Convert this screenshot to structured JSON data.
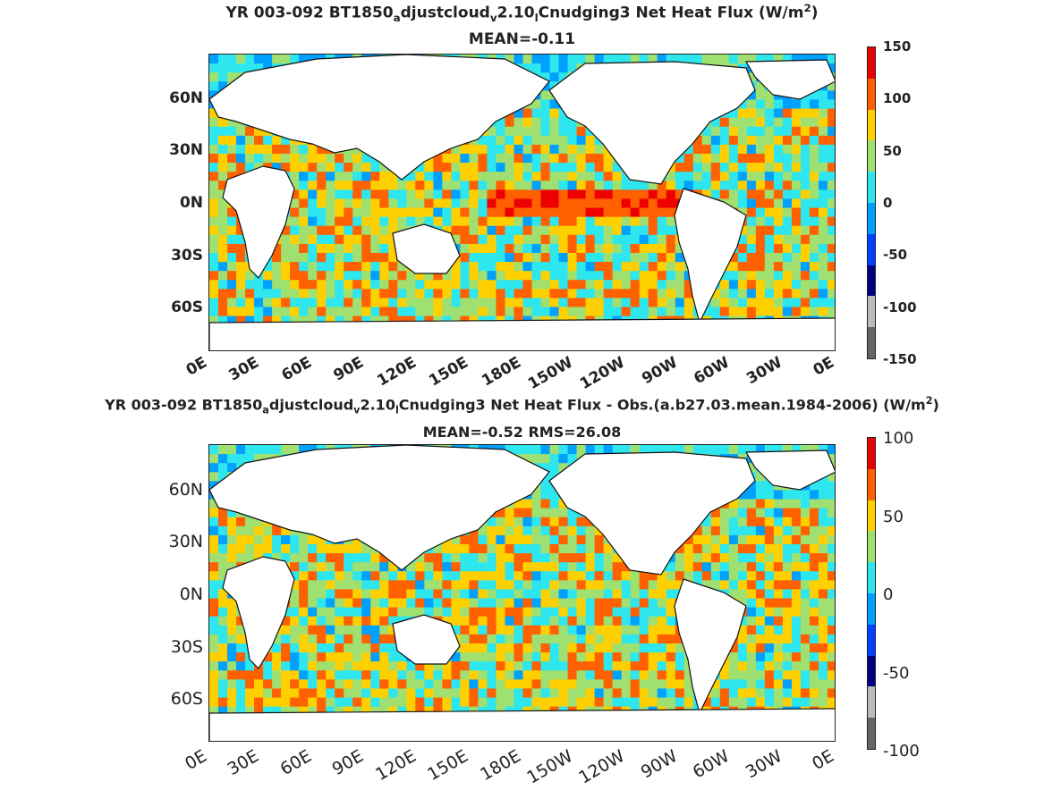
{
  "colors": {
    "deep_neg": "#000080",
    "neg": "#0040ff",
    "mid_neg": "#00a0ff",
    "zero": "#2ee6ee",
    "pos": "#a0e070",
    "mid_pos": "#ffd000",
    "high_pos": "#ff6000",
    "max_pos": "#ee0000",
    "land": "#ffffff",
    "ice": "#666666"
  },
  "chart_data": [
    {
      "type": "heatmap",
      "title_main": "YR 003-092 BT1850",
      "title_sub1": "a",
      "title_mid1": "djustcloud",
      "title_sub2": "v",
      "title_mid2": "2.10",
      "title_sub3": "l",
      "title_end": "Cnudging3  Net Heat Flux (W/m",
      "title_sup": "2",
      "title_close": ")",
      "subtitle": "MEAN=-0.11",
      "y_ticks": [
        "60N",
        "30N",
        "0N",
        "30S",
        "60S"
      ],
      "x_ticks": [
        "0E",
        "30E",
        "60E",
        "90E",
        "120E",
        "150E",
        "180E",
        "150W",
        "120W",
        "90W",
        "60W",
        "30W",
        "0E"
      ],
      "colorbar_ticks": [
        "150",
        "100",
        "50",
        "0",
        "-50",
        "-100",
        "-150"
      ],
      "clim": [
        -150,
        150
      ]
    },
    {
      "type": "heatmap",
      "title_main": "YR 003-092 BT1850",
      "title_sub1": "a",
      "title_mid1": "djustcloud",
      "title_sub2": "v",
      "title_mid2": "2.10",
      "title_sub3": "l",
      "title_end": "Cnudging3  Net Heat Flux - Obs.(a.b27.03.mean.1984-2006) (W/m",
      "title_sup": "2",
      "title_close": ")",
      "subtitle": "MEAN=-0.52 RMS=26.08",
      "y_ticks": [
        "60N",
        "30N",
        "0N",
        "30S",
        "60S"
      ],
      "x_ticks": [
        "0E",
        "30E",
        "60E",
        "90E",
        "120E",
        "150E",
        "180E",
        "150W",
        "120W",
        "90W",
        "60W",
        "30W",
        "0E"
      ],
      "colorbar_ticks": [
        "100",
        "50",
        "0",
        "-50",
        "-100"
      ],
      "clim": [
        -100,
        100
      ]
    }
  ]
}
